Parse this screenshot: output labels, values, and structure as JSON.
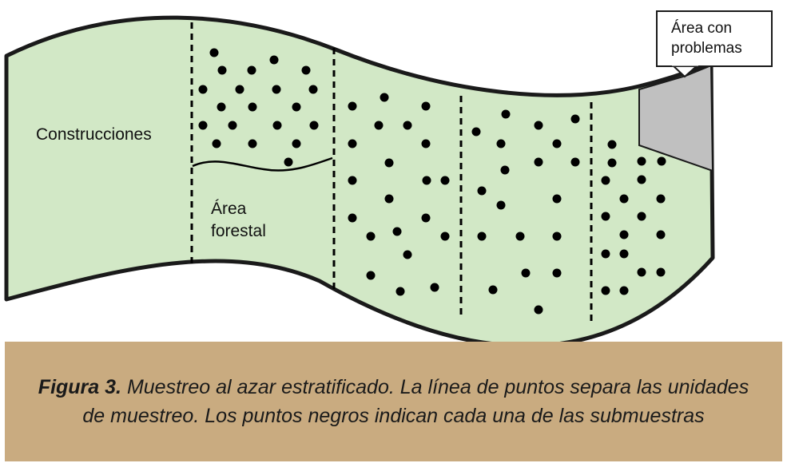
{
  "labels": {
    "construcciones": "Construcciones",
    "area_forestal_1": "Área",
    "area_forestal_2": "forestal",
    "callout_1": "Área con",
    "callout_2": "problemas"
  },
  "caption": {
    "figure_label": "Figura 3.",
    "text": "Muestreo al azar estratificado. La línea de puntos separa las unidades de muestreo. Los puntos negros indican cada una de las submuestras"
  },
  "colors": {
    "field_fill": "#d2e8c6",
    "field_stroke": "#1a1a1a",
    "problem_area_fill": "#c0c0c0",
    "caption_bg": "#c9ab80",
    "sample_dot": "#000000"
  }
}
